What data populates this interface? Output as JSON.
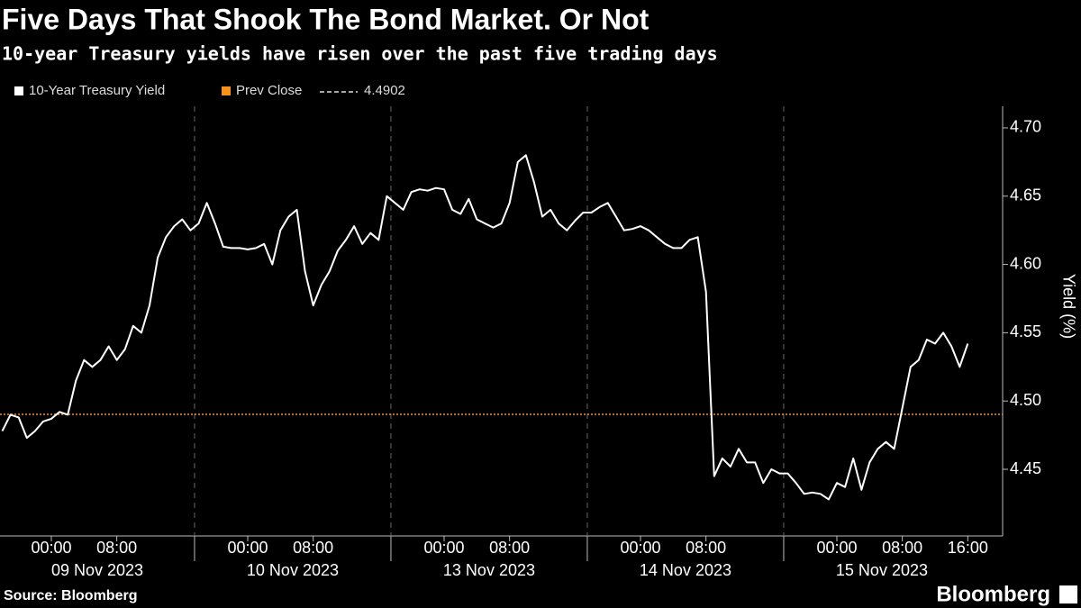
{
  "title": "Five Days That Shook The Bond Market. Or Not",
  "subtitle": "10-year Treasury yields have risen over the past five trading days",
  "source": "Source: Bloomberg",
  "brand": "Bloomberg",
  "chart_data": {
    "type": "line",
    "y_axis_label": "Yield (%)",
    "categories": [
      null,
      null,
      null,
      null,
      null,
      null,
      "00:00",
      null,
      null,
      null,
      null,
      null,
      null,
      null,
      "08:00",
      null,
      null,
      null,
      null,
      null,
      null,
      null,
      null,
      null,
      null,
      null,
      null,
      null,
      null,
      null,
      "00:00",
      null,
      null,
      null,
      null,
      null,
      null,
      null,
      "08:00",
      null,
      null,
      null,
      null,
      null,
      null,
      null,
      null,
      null,
      null,
      null,
      null,
      null,
      null,
      null,
      "00:00",
      null,
      null,
      null,
      null,
      null,
      null,
      null,
      "08:00",
      null,
      null,
      null,
      null,
      null,
      null,
      null,
      null,
      null,
      null,
      null,
      null,
      null,
      null,
      null,
      "00:00",
      null,
      null,
      null,
      null,
      null,
      null,
      null,
      "08:00",
      null,
      null,
      null,
      null,
      null,
      null,
      null,
      null,
      null,
      null,
      null,
      null,
      null,
      null,
      null,
      "00:00",
      null,
      null,
      null,
      null,
      null,
      null,
      null,
      "08:00",
      null,
      null,
      null,
      null,
      null,
      null,
      null,
      "16:00"
    ],
    "date_groups": [
      "09 Nov 2023",
      "10 Nov 2023",
      "13 Nov 2023",
      "14 Nov 2023",
      "15 Nov 2023"
    ],
    "series": [
      {
        "name": "10-Year Treasury Yield",
        "color": "#ffffff",
        "values": [
          4.478,
          4.49,
          4.488,
          4.473,
          4.478,
          4.485,
          4.487,
          4.492,
          4.49,
          4.515,
          4.53,
          4.525,
          4.53,
          4.54,
          4.53,
          4.538,
          4.555,
          4.55,
          4.57,
          4.605,
          4.62,
          4.628,
          4.633,
          4.625,
          4.63,
          4.645,
          4.63,
          4.613,
          4.612,
          4.612,
          4.611,
          4.612,
          4.615,
          4.6,
          4.625,
          4.635,
          4.64,
          4.595,
          4.57,
          4.585,
          4.595,
          4.61,
          4.618,
          4.628,
          4.615,
          4.623,
          4.618,
          4.65,
          4.645,
          4.64,
          4.653,
          4.655,
          4.654,
          4.656,
          4.655,
          4.64,
          4.637,
          4.648,
          4.633,
          4.63,
          4.627,
          4.63,
          4.645,
          4.675,
          4.68,
          4.66,
          4.635,
          4.64,
          4.63,
          4.625,
          4.632,
          4.638,
          4.638,
          4.642,
          4.645,
          4.635,
          4.625,
          4.626,
          4.628,
          4.625,
          4.62,
          4.615,
          4.612,
          4.612,
          4.618,
          4.62,
          4.58,
          4.445,
          4.458,
          4.452,
          4.465,
          4.455,
          4.455,
          4.44,
          4.45,
          4.447,
          4.447,
          4.44,
          4.432,
          4.433,
          4.432,
          4.428,
          4.44,
          4.437,
          4.458,
          4.435,
          4.455,
          4.465,
          4.47,
          4.465,
          4.495,
          4.525,
          4.53,
          4.545,
          4.542,
          4.55,
          4.54,
          4.525,
          4.542
        ]
      }
    ],
    "reference": {
      "name": "Prev Close",
      "value": 4.4902,
      "color": "#f7931a"
    },
    "ylim": [
      4.4012,
      4.7158
    ],
    "yticks": [
      4.45,
      {
        "value": 4.5,
        "label": "4.50"
      },
      4.55,
      {
        "value": 4.6,
        "label": "4.60"
      },
      4.65,
      {
        "value": 4.7,
        "label": "4.70"
      }
    ],
    "axis_side": "right",
    "grid": false
  }
}
